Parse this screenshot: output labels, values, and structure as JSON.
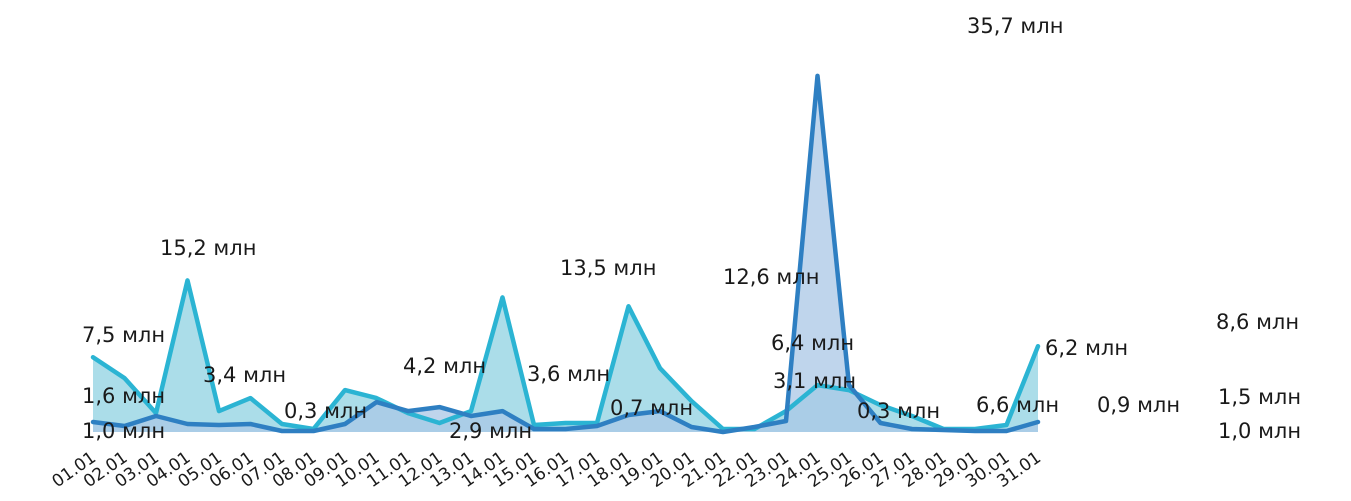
{
  "chart_data": {
    "type": "area",
    "title": "",
    "xlabel": "",
    "ylabel": "",
    "ylim": [
      0,
      38
    ],
    "grid": false,
    "legend": "none",
    "categories": [
      "01.01",
      "02.01",
      "03.01",
      "04.01",
      "05.01",
      "06.01",
      "07.01",
      "08.01",
      "09.01",
      "10.01",
      "11.01",
      "12.01",
      "13.01",
      "14.01",
      "15.01",
      "16.01",
      "17.01",
      "18.01",
      "19.01",
      "20.01",
      "21.01",
      "22.01",
      "23.01",
      "24.01",
      "25.01",
      "26.01",
      "27.01",
      "28.01",
      "29.01",
      "30.01",
      "31.01"
    ],
    "series": [
      {
        "values": [
          7.5,
          5.4,
          1.9,
          15.2,
          2.1,
          3.4,
          0.8,
          0.3,
          4.2,
          3.4,
          1.9,
          0.9,
          2.1,
          13.5,
          0.7,
          0.9,
          0.9,
          12.6,
          6.4,
          3.1,
          0.3,
          0.3,
          2.1,
          4.7,
          4.2,
          2.7,
          1.6,
          0.3,
          0.3,
          0.7,
          8.6
        ],
        "color": "#2bb4d3",
        "fill": "#a6dbe8"
      },
      {
        "values": [
          1.0,
          0.6,
          1.6,
          0.8,
          0.7,
          0.8,
          0.1,
          0.1,
          0.8,
          3.0,
          2.1,
          2.5,
          1.6,
          2.1,
          0.3,
          0.3,
          0.6,
          1.7,
          2.1,
          0.5,
          0.0,
          0.5,
          1.1,
          35.7,
          4.7,
          0.9,
          0.3,
          0.2,
          0.1,
          0.1,
          1.0
        ],
        "color": "#2e7fc2",
        "fill": "#a9c7e6"
      }
    ],
    "data_labels": [
      {
        "category": "01.01",
        "text": "7,5 млн"
      },
      {
        "category": "01.01",
        "text": "1,6 млн"
      },
      {
        "category": "01.01",
        "text": "1,0 млн"
      },
      {
        "category": "04.01",
        "text": "15,2 млн"
      },
      {
        "category": "05.01",
        "text": "3,4 млн"
      },
      {
        "category": "07.01",
        "text": "0,3 млн"
      },
      {
        "category": "10.01",
        "text": "4,2 млн"
      },
      {
        "category": "11.01",
        "text": "2,9 млн"
      },
      {
        "category": "13.01",
        "text": "3,6 млн"
      },
      {
        "category": "14.01",
        "text": "13,5 млн"
      },
      {
        "category": "15.01",
        "text": "0,7 млн"
      },
      {
        "category": "18.01",
        "text": "12,6 млн"
      },
      {
        "category": "19.01",
        "text": "6,4 млн"
      },
      {
        "category": "19.01",
        "text": "3,1 млн"
      },
      {
        "category": "21.01",
        "text": "0,3 млн"
      },
      {
        "category": "24.01",
        "text": "35,7 млн"
      },
      {
        "category": "24.01",
        "text": "6,6 млн"
      },
      {
        "category": "25.01",
        "text": "6,2 млн"
      },
      {
        "category": "28.01",
        "text": "0,9 млн"
      },
      {
        "category": "31.01",
        "text": "8,6 млн"
      },
      {
        "category": "31.01",
        "text": "1,5 млн"
      },
      {
        "category": "31.01",
        "text": "1,0 млн"
      }
    ]
  }
}
